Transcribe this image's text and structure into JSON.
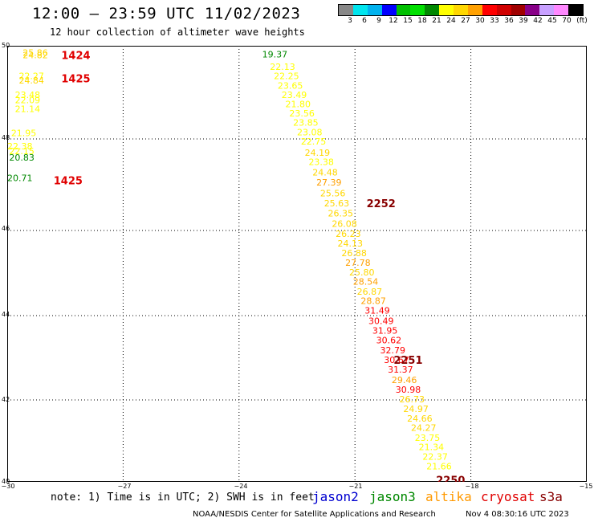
{
  "header": {
    "title": "12:00 – 23:59 UTC 11/02/2023",
    "subtitle": "12 hour collection of altimeter wave heights"
  },
  "legend": {
    "colors": [
      "#888888",
      "#00e5ee",
      "#00b2ee",
      "#0000ff",
      "#00c000",
      "#00e000",
      "#008800",
      "#ffff00",
      "#ffd700",
      "#ffa000",
      "#ff0000",
      "#d00000",
      "#a00000",
      "#880088",
      "#c8a0ff",
      "#ff88ff",
      "#000000"
    ],
    "labels": [
      "3",
      "6",
      "9",
      "12",
      "15",
      "18",
      "21",
      "24",
      "27",
      "30",
      "33",
      "36",
      "39",
      "42",
      "45",
      "70",
      "(ft)"
    ]
  },
  "axes": {
    "y_ticks": [
      "50",
      "48",
      "46",
      "44",
      "42",
      "40"
    ],
    "x_ticks": [
      "−30",
      "−27",
      "−24",
      "−21",
      "−18",
      "−15"
    ]
  },
  "footer": {
    "note": "note: 1) Time is in UTC; 2) SWH is in feet",
    "satellites": [
      {
        "name": "jason2",
        "color": "#0000d0"
      },
      {
        "name": "jason3",
        "color": "#008800"
      },
      {
        "name": "altika",
        "color": "#ff9900"
      },
      {
        "name": "cryosat",
        "color": "#e00000"
      },
      {
        "name": "s3a",
        "color": "#880000"
      }
    ],
    "credit": "NOAA/NESDIS Center for Satellite Applications and Research",
    "timestamp": "Nov  4 08:30:16 UTC 2023"
  },
  "chart_data": {
    "type": "scatter",
    "xlim": [
      -30,
      -15
    ],
    "ylim": [
      40,
      50
    ],
    "grid": true,
    "track_labels": [
      {
        "text": "1424",
        "x": -28.6,
        "y": 49.8,
        "color": "#e00000"
      },
      {
        "text": "1425",
        "x": -28.6,
        "y": 49.3,
        "color": "#e00000"
      },
      {
        "text": "1425",
        "x": -28.8,
        "y": 47.1,
        "color": "#e00000"
      },
      {
        "text": "2252",
        "x": -20.7,
        "y": 46.6,
        "color": "#880000"
      },
      {
        "text": "2251",
        "x": -20.0,
        "y": 42.95,
        "color": "#880000"
      },
      {
        "text": "2250",
        "x": -18.9,
        "y": 40.05,
        "color": "#880000"
      }
    ],
    "points": [
      {
        "v": "25.86",
        "x": -29.6,
        "y": 49.85,
        "c": "#ffd700"
      },
      {
        "v": "24.82",
        "x": -29.6,
        "y": 49.8,
        "c": "#ffd700"
      },
      {
        "v": "22.27",
        "x": -29.7,
        "y": 49.35,
        "c": "#ffff00"
      },
      {
        "v": "24.84",
        "x": -29.7,
        "y": 49.26,
        "c": "#ffd700"
      },
      {
        "v": "23.48",
        "x": -29.8,
        "y": 48.95,
        "c": "#ffff00"
      },
      {
        "v": "22.09",
        "x": -29.8,
        "y": 48.84,
        "c": "#ffff00"
      },
      {
        "v": "21.14",
        "x": -29.8,
        "y": 48.65,
        "c": "#ffff00"
      },
      {
        "v": "21.95",
        "x": -29.9,
        "y": 48.13,
        "c": "#ffff00"
      },
      {
        "v": "22.38",
        "x": -30.0,
        "y": 47.84,
        "c": "#ffff00"
      },
      {
        "v": "22.15",
        "x": -29.95,
        "y": 47.74,
        "c": "#ffff00"
      },
      {
        "v": "20.83",
        "x": -29.95,
        "y": 47.6,
        "c": "#008800"
      },
      {
        "v": "20.71",
        "x": -30.0,
        "y": 47.15,
        "c": "#008800"
      },
      {
        "v": "19.37",
        "x": -23.4,
        "y": 49.82,
        "c": "#008800"
      },
      {
        "v": "22.13",
        "x": -23.2,
        "y": 49.55,
        "c": "#ffff00"
      },
      {
        "v": "22.25",
        "x": -23.1,
        "y": 49.35,
        "c": "#ffff00"
      },
      {
        "v": "23.65",
        "x": -23.0,
        "y": 49.15,
        "c": "#ffff00"
      },
      {
        "v": "23.49",
        "x": -22.9,
        "y": 48.95,
        "c": "#ffff00"
      },
      {
        "v": "21.80",
        "x": -22.8,
        "y": 48.75,
        "c": "#ffff00"
      },
      {
        "v": "23.56",
        "x": -22.7,
        "y": 48.55,
        "c": "#ffff00"
      },
      {
        "v": "23.85",
        "x": -22.6,
        "y": 48.35,
        "c": "#ffff00"
      },
      {
        "v": "23.08",
        "x": -22.5,
        "y": 48.15,
        "c": "#ffff00"
      },
      {
        "v": "22.75",
        "x": -22.4,
        "y": 47.95,
        "c": "#ffff00"
      },
      {
        "v": "24.19",
        "x": -22.3,
        "y": 47.7,
        "c": "#ffd700"
      },
      {
        "v": "23.38",
        "x": -22.2,
        "y": 47.5,
        "c": "#ffff00"
      },
      {
        "v": "24.48",
        "x": -22.1,
        "y": 47.27,
        "c": "#ffd700"
      },
      {
        "v": "27.39",
        "x": -22.0,
        "y": 47.05,
        "c": "#ffa000"
      },
      {
        "v": "25.56",
        "x": -21.9,
        "y": 46.82,
        "c": "#ffd700"
      },
      {
        "v": "25.63",
        "x": -21.8,
        "y": 46.6,
        "c": "#ffd700"
      },
      {
        "v": "26.35",
        "x": -21.7,
        "y": 46.38,
        "c": "#ffd700"
      },
      {
        "v": "26.08",
        "x": -21.6,
        "y": 46.15,
        "c": "#ffd700"
      },
      {
        "v": "26.23",
        "x": -21.5,
        "y": 45.92,
        "c": "#ffd700"
      },
      {
        "v": "24.13",
        "x": -21.45,
        "y": 45.7,
        "c": "#ffd700"
      },
      {
        "v": "26.88",
        "x": -21.35,
        "y": 45.47,
        "c": "#ffd700"
      },
      {
        "v": "27.78",
        "x": -21.25,
        "y": 45.25,
        "c": "#ffa000"
      },
      {
        "v": "25.80",
        "x": -21.15,
        "y": 45.02,
        "c": "#ffd700"
      },
      {
        "v": "28.54",
        "x": -21.05,
        "y": 44.8,
        "c": "#ffa000"
      },
      {
        "v": "26.87",
        "x": -20.95,
        "y": 44.57,
        "c": "#ffd700"
      },
      {
        "v": "28.87",
        "x": -20.85,
        "y": 44.35,
        "c": "#ffa000"
      },
      {
        "v": "31.49",
        "x": -20.75,
        "y": 44.12,
        "c": "#ff0000"
      },
      {
        "v": "30.49",
        "x": -20.65,
        "y": 43.88,
        "c": "#ff0000"
      },
      {
        "v": "31.95",
        "x": -20.55,
        "y": 43.65,
        "c": "#ff0000"
      },
      {
        "v": "30.62",
        "x": -20.45,
        "y": 43.42,
        "c": "#ff0000"
      },
      {
        "v": "32.79",
        "x": -20.35,
        "y": 43.18,
        "c": "#ff0000"
      },
      {
        "v": "30.67",
        "x": -20.25,
        "y": 42.95,
        "c": "#ff0000"
      },
      {
        "v": "31.37",
        "x": -20.15,
        "y": 42.72,
        "c": "#ff0000"
      },
      {
        "v": "29.46",
        "x": -20.05,
        "y": 42.48,
        "c": "#ffa000"
      },
      {
        "v": "30.98",
        "x": -19.95,
        "y": 42.25,
        "c": "#ff0000"
      },
      {
        "v": "26.73",
        "x": -19.85,
        "y": 42.02,
        "c": "#ffd700"
      },
      {
        "v": "24.97",
        "x": -19.75,
        "y": 41.78,
        "c": "#ffd700"
      },
      {
        "v": "24.66",
        "x": -19.65,
        "y": 41.55,
        "c": "#ffd700"
      },
      {
        "v": "24.27",
        "x": -19.55,
        "y": 41.32,
        "c": "#ffd700"
      },
      {
        "v": "23.75",
        "x": -19.45,
        "y": 41.08,
        "c": "#ffff00"
      },
      {
        "v": "21.34",
        "x": -19.35,
        "y": 40.85,
        "c": "#ffff00"
      },
      {
        "v": "22.37",
        "x": -19.25,
        "y": 40.62,
        "c": "#ffff00"
      },
      {
        "v": "21.66",
        "x": -19.15,
        "y": 40.38,
        "c": "#ffff00"
      }
    ]
  }
}
